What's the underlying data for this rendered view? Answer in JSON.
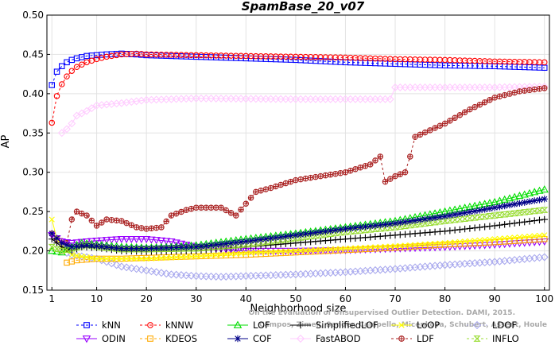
{
  "chart_data": {
    "type": "line",
    "title": "SpamBase_20_v07",
    "xlabel": "Neighborhood size",
    "ylabel": "AP",
    "xlim": [
      0,
      101
    ],
    "ylim": [
      0.15,
      0.5
    ],
    "x_ticks": [
      1,
      10,
      20,
      30,
      40,
      50,
      60,
      70,
      80,
      90,
      100
    ],
    "y_ticks": [
      0.15,
      0.2,
      0.25,
      0.3,
      0.35,
      0.4,
      0.45,
      0.5
    ],
    "grid": true,
    "legend_position": "bottom",
    "credit": [
      "Campos, Zimek, Sander, Campello, Micenkova, Schubert, Assent, Houle",
      "On the Evaluation of Unsupervised Outlier Detection. DAMI, 2015."
    ],
    "series": [
      {
        "name": "kNN",
        "color": "#0000ff",
        "marker": "square",
        "line": "dashed",
        "points": [
          [
            1,
            0.411
          ],
          [
            2,
            0.428
          ],
          [
            3,
            0.435
          ],
          [
            4,
            0.44
          ],
          [
            5,
            0.443
          ],
          [
            6,
            0.445
          ],
          [
            8,
            0.448
          ],
          [
            10,
            0.449
          ],
          [
            12,
            0.45
          ],
          [
            15,
            0.451
          ],
          [
            18,
            0.45
          ],
          [
            20,
            0.449
          ],
          [
            25,
            0.448
          ],
          [
            30,
            0.447
          ],
          [
            40,
            0.445
          ],
          [
            50,
            0.443
          ],
          [
            60,
            0.44
          ],
          [
            70,
            0.438
          ],
          [
            80,
            0.436
          ],
          [
            90,
            0.435
          ],
          [
            100,
            0.433
          ]
        ]
      },
      {
        "name": "kNNW",
        "color": "#ff0000",
        "marker": "circle",
        "line": "dashed",
        "points": [
          [
            1,
            0.363
          ],
          [
            2,
            0.397
          ],
          [
            3,
            0.412
          ],
          [
            4,
            0.422
          ],
          [
            5,
            0.429
          ],
          [
            6,
            0.434
          ],
          [
            8,
            0.44
          ],
          [
            10,
            0.444
          ],
          [
            12,
            0.447
          ],
          [
            15,
            0.45
          ],
          [
            18,
            0.451
          ],
          [
            20,
            0.45
          ],
          [
            30,
            0.449
          ],
          [
            40,
            0.448
          ],
          [
            50,
            0.447
          ],
          [
            60,
            0.446
          ],
          [
            70,
            0.444
          ],
          [
            80,
            0.443
          ],
          [
            90,
            0.441
          ],
          [
            100,
            0.44
          ]
        ]
      },
      {
        "name": "LOF",
        "color": "#00dd00",
        "marker": "triangle",
        "line": "solid",
        "points": [
          [
            1,
            0.2
          ],
          [
            3,
            0.198
          ],
          [
            5,
            0.205
          ],
          [
            7,
            0.21
          ],
          [
            10,
            0.208
          ],
          [
            15,
            0.205
          ],
          [
            20,
            0.204
          ],
          [
            25,
            0.205
          ],
          [
            30,
            0.207
          ],
          [
            40,
            0.215
          ],
          [
            50,
            0.222
          ],
          [
            60,
            0.23
          ],
          [
            70,
            0.238
          ],
          [
            80,
            0.25
          ],
          [
            90,
            0.262
          ],
          [
            100,
            0.278
          ]
        ]
      },
      {
        "name": "SimplifiedLOF",
        "color": "#000000",
        "marker": "plus",
        "line": "solid",
        "points": [
          [
            1,
            0.215
          ],
          [
            3,
            0.205
          ],
          [
            5,
            0.2
          ],
          [
            7,
            0.205
          ],
          [
            10,
            0.204
          ],
          [
            15,
            0.2
          ],
          [
            20,
            0.199
          ],
          [
            30,
            0.2
          ],
          [
            40,
            0.205
          ],
          [
            50,
            0.21
          ],
          [
            60,
            0.215
          ],
          [
            70,
            0.22
          ],
          [
            80,
            0.225
          ],
          [
            90,
            0.232
          ],
          [
            100,
            0.24
          ]
        ]
      },
      {
        "name": "LoOP",
        "color": "#ffff00",
        "marker": "x",
        "line": "solid",
        "points": [
          [
            1,
            0.24
          ],
          [
            2,
            0.215
          ],
          [
            3,
            0.205
          ],
          [
            5,
            0.195
          ],
          [
            10,
            0.19
          ],
          [
            20,
            0.19
          ],
          [
            30,
            0.193
          ],
          [
            40,
            0.197
          ],
          [
            50,
            0.2
          ],
          [
            60,
            0.203
          ],
          [
            70,
            0.206
          ],
          [
            80,
            0.21
          ],
          [
            90,
            0.215
          ],
          [
            100,
            0.22
          ]
        ]
      },
      {
        "name": "LDOF",
        "color": "#aaaaee",
        "marker": "diamond",
        "line": "dotted",
        "points": [
          [
            3,
            0.2
          ],
          [
            5,
            0.195
          ],
          [
            10,
            0.19
          ],
          [
            15,
            0.18
          ],
          [
            20,
            0.175
          ],
          [
            25,
            0.17
          ],
          [
            30,
            0.168
          ],
          [
            35,
            0.167
          ],
          [
            40,
            0.168
          ],
          [
            50,
            0.17
          ],
          [
            60,
            0.173
          ],
          [
            70,
            0.177
          ],
          [
            80,
            0.182
          ],
          [
            90,
            0.186
          ],
          [
            100,
            0.192
          ]
        ]
      },
      {
        "name": "ODIN",
        "color": "#9900ff",
        "marker": "triangle-down",
        "line": "solid",
        "points": [
          [
            1,
            0.22
          ],
          [
            3,
            0.212
          ],
          [
            5,
            0.21
          ],
          [
            8,
            0.212
          ],
          [
            10,
            0.213
          ],
          [
            15,
            0.215
          ],
          [
            20,
            0.215
          ],
          [
            25,
            0.212
          ],
          [
            30,
            0.205
          ],
          [
            40,
            0.2
          ],
          [
            50,
            0.2
          ],
          [
            60,
            0.201
          ],
          [
            70,
            0.203
          ],
          [
            80,
            0.205
          ],
          [
            90,
            0.208
          ],
          [
            100,
            0.212
          ]
        ]
      },
      {
        "name": "KDEOS",
        "color": "#ffaa00",
        "marker": "square",
        "line": "dashed",
        "points": [
          [
            4,
            0.185
          ],
          [
            6,
            0.188
          ],
          [
            10,
            0.19
          ],
          [
            15,
            0.19
          ],
          [
            20,
            0.191
          ],
          [
            30,
            0.193
          ],
          [
            40,
            0.195
          ],
          [
            50,
            0.198
          ],
          [
            60,
            0.201
          ],
          [
            70,
            0.204
          ],
          [
            80,
            0.208
          ],
          [
            90,
            0.211
          ],
          [
            100,
            0.215
          ]
        ]
      },
      {
        "name": "COF",
        "color": "#000088",
        "marker": "star",
        "line": "solid",
        "points": [
          [
            1,
            0.222
          ],
          [
            3,
            0.21
          ],
          [
            5,
            0.205
          ],
          [
            8,
            0.207
          ],
          [
            10,
            0.206
          ],
          [
            15,
            0.203
          ],
          [
            20,
            0.203
          ],
          [
            30,
            0.205
          ],
          [
            40,
            0.212
          ],
          [
            50,
            0.22
          ],
          [
            60,
            0.228
          ],
          [
            70,
            0.235
          ],
          [
            80,
            0.244
          ],
          [
            90,
            0.255
          ],
          [
            100,
            0.266
          ]
        ]
      },
      {
        "name": "FastABOD",
        "color": "#ffccff",
        "marker": "diamond",
        "line": "solid",
        "points": [
          [
            3,
            0.35
          ],
          [
            4,
            0.355
          ],
          [
            5,
            0.362
          ],
          [
            6,
            0.372
          ],
          [
            8,
            0.378
          ],
          [
            10,
            0.385
          ],
          [
            15,
            0.388
          ],
          [
            20,
            0.392
          ],
          [
            25,
            0.393
          ],
          [
            30,
            0.394
          ],
          [
            50,
            0.393
          ],
          [
            60,
            0.393
          ],
          [
            69,
            0.393
          ],
          [
            70,
            0.408
          ],
          [
            80,
            0.408
          ],
          [
            90,
            0.408
          ],
          [
            100,
            0.409
          ]
        ]
      },
      {
        "name": "LDF",
        "color": "#aa2222",
        "marker": "circle-plus",
        "line": "dashed",
        "points": [
          [
            1,
            0.222
          ],
          [
            2,
            0.215
          ],
          [
            4,
            0.21
          ],
          [
            5,
            0.24
          ],
          [
            6,
            0.25
          ],
          [
            8,
            0.245
          ],
          [
            10,
            0.232
          ],
          [
            12,
            0.24
          ],
          [
            15,
            0.238
          ],
          [
            18,
            0.23
          ],
          [
            20,
            0.228
          ],
          [
            23,
            0.23
          ],
          [
            25,
            0.245
          ],
          [
            28,
            0.252
          ],
          [
            30,
            0.255
          ],
          [
            35,
            0.255
          ],
          [
            38,
            0.245
          ],
          [
            40,
            0.26
          ],
          [
            42,
            0.275
          ],
          [
            45,
            0.28
          ],
          [
            50,
            0.29
          ],
          [
            55,
            0.295
          ],
          [
            60,
            0.3
          ],
          [
            65,
            0.31
          ],
          [
            67,
            0.32
          ],
          [
            68,
            0.288
          ],
          [
            70,
            0.295
          ],
          [
            72,
            0.3
          ],
          [
            73,
            0.32
          ],
          [
            74,
            0.345
          ],
          [
            80,
            0.362
          ],
          [
            85,
            0.38
          ],
          [
            90,
            0.395
          ],
          [
            95,
            0.403
          ],
          [
            100,
            0.407
          ]
        ]
      },
      {
        "name": "INFLO",
        "color": "#99dd33",
        "marker": "hourglass",
        "line": "dashed",
        "points": [
          [
            1,
            0.205
          ],
          [
            3,
            0.2
          ],
          [
            5,
            0.203
          ],
          [
            8,
            0.207
          ],
          [
            10,
            0.205
          ],
          [
            15,
            0.202
          ],
          [
            20,
            0.202
          ],
          [
            30,
            0.203
          ],
          [
            40,
            0.208
          ],
          [
            50,
            0.216
          ],
          [
            60,
            0.224
          ],
          [
            70,
            0.23
          ],
          [
            80,
            0.238
          ],
          [
            90,
            0.245
          ],
          [
            100,
            0.252
          ]
        ]
      }
    ]
  }
}
